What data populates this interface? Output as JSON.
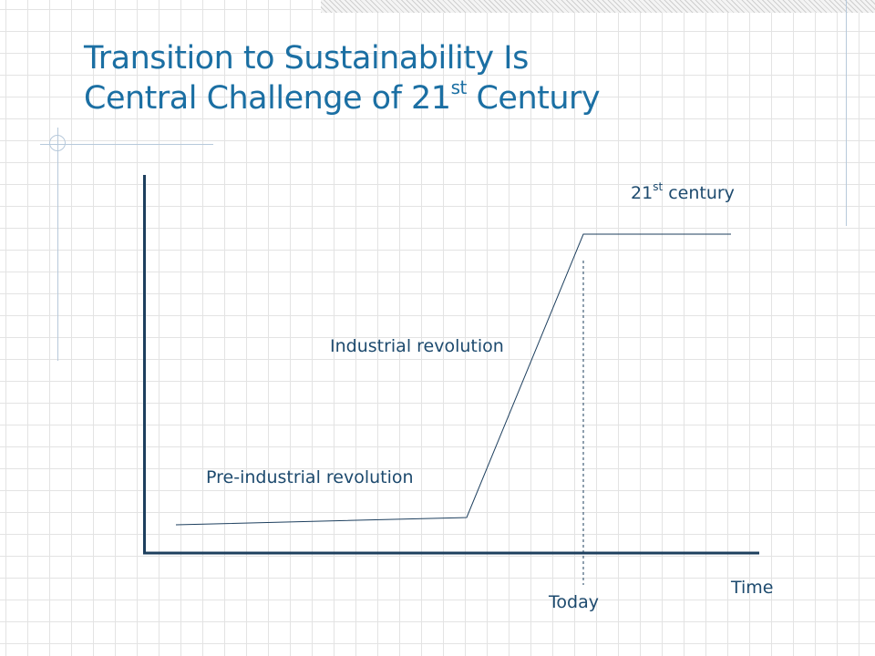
{
  "slide": {
    "title_line1": "Transition to Sustainability Is",
    "title_line2_main": "Central Challenge of 21",
    "title_line2_sup": "st",
    "title_line2_end": " Century"
  },
  "diagram": {
    "labels": {
      "century_num": "21",
      "century_sup": "st",
      "century_word": " century",
      "industrial": "Industrial revolution",
      "pre_industrial": "Pre-industrial revolution",
      "time": "Time",
      "today": "Today"
    }
  },
  "colors": {
    "title": "#1b6fa3",
    "label": "#1d4a6e",
    "line": "#1d3f5e",
    "axis": "#1d3f5e"
  }
}
